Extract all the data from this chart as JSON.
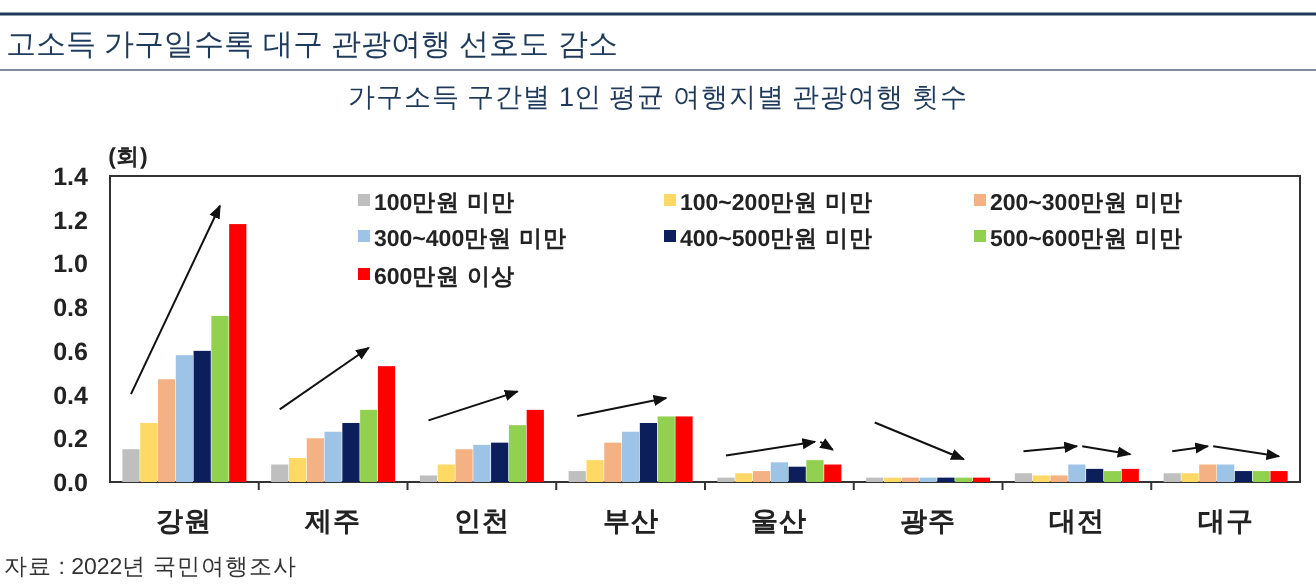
{
  "chart_data": {
    "type": "bar",
    "title": "고소득 가구일수록 대구 관광여행 선호도 감소",
    "subtitle": "가구소득 구간별 1인 평균 여행지별 관광여행 횟수",
    "ylabel": "(회)",
    "categories": [
      "강원",
      "제주",
      "인천",
      "부산",
      "울산",
      "광주",
      "대전",
      "대구"
    ],
    "series": [
      {
        "name": "100만원 미만",
        "color": "#bfbfbf",
        "values": [
          0.15,
          0.08,
          0.03,
          0.05,
          0.02,
          0.02,
          0.04,
          0.04
        ]
      },
      {
        "name": "100~200만원 미만",
        "color": "#ffd966",
        "values": [
          0.27,
          0.11,
          0.08,
          0.1,
          0.04,
          0.02,
          0.03,
          0.04
        ]
      },
      {
        "name": "200~300만원 미만",
        "color": "#f4b183",
        "values": [
          0.47,
          0.2,
          0.15,
          0.18,
          0.05,
          0.02,
          0.03,
          0.08
        ]
      },
      {
        "name": "300~400만원 미만",
        "color": "#9dc3e6",
        "values": [
          0.58,
          0.23,
          0.17,
          0.23,
          0.09,
          0.02,
          0.08,
          0.08
        ]
      },
      {
        "name": "400~500만원 미만",
        "color": "#0c1f5c",
        "values": [
          0.6,
          0.27,
          0.18,
          0.27,
          0.07,
          0.02,
          0.06,
          0.05
        ]
      },
      {
        "name": "500~600만원 미만",
        "color": "#92d050",
        "values": [
          0.76,
          0.33,
          0.26,
          0.3,
          0.1,
          0.02,
          0.05,
          0.05
        ]
      },
      {
        "name": "600만원 이상",
        "color": "#ff0000",
        "values": [
          1.18,
          0.53,
          0.33,
          0.3,
          0.08,
          0.02,
          0.06,
          0.05
        ]
      }
    ],
    "ylim": [
      0,
      1.4
    ],
    "yticks": [
      {
        "value": 0,
        "label": "0.0"
      },
      {
        "value": 0.2,
        "label": "0.2"
      },
      {
        "value": 0.4,
        "label": "0.4"
      },
      {
        "value": 0.6,
        "label": "0.6"
      },
      {
        "value": 0.8,
        "label": "0.8"
      },
      {
        "value": 1.0,
        "label": "1.0"
      },
      {
        "value": 1.2,
        "label": "1.2"
      },
      {
        "value": 1.4,
        "label": "1.4"
      }
    ],
    "grid": false,
    "legend": "top right",
    "annotations": [
      "자료 : 2022년 국민여행조사"
    ]
  }
}
